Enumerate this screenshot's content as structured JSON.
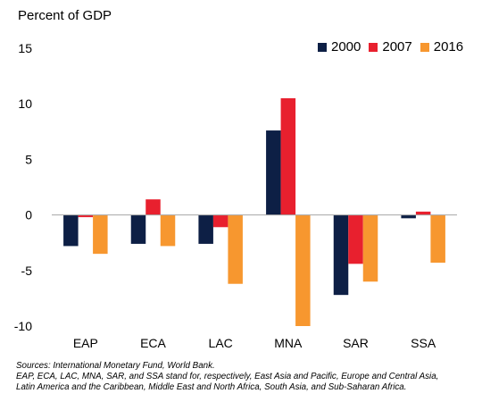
{
  "chart_data": {
    "type": "bar",
    "ylabel": "Percent of GDP",
    "categories": [
      "EAP",
      "ECA",
      "LAC",
      "MNA",
      "SAR",
      "SSA"
    ],
    "series": [
      {
        "name": "2000",
        "color": "#0d1f45",
        "values": [
          -2.8,
          -2.6,
          -2.6,
          7.6,
          -7.2,
          -0.3
        ]
      },
      {
        "name": "2007",
        "color": "#e8202e",
        "values": [
          -0.2,
          1.4,
          -1.1,
          10.5,
          -4.4,
          0.3
        ]
      },
      {
        "name": "2016",
        "color": "#f7972f",
        "values": [
          -3.5,
          -2.8,
          -6.2,
          -10.0,
          -6.0,
          -4.3
        ]
      }
    ],
    "ylim": [
      -10,
      15
    ],
    "yticks": [
      -10,
      -5,
      0,
      5,
      10,
      15
    ],
    "ytick_labels": [
      "-10",
      "-5",
      "0",
      "5",
      "10",
      "15"
    ],
    "legend_position": "top-right",
    "grid": false
  },
  "notes": {
    "sources": "Sources: International Monetary Fund, World Bank.",
    "line1": "EAP, ECA, LAC, MNA, SAR, and SSA stand for, respectively, East Asia and Pacific, Europe and Central Asia,",
    "line2": "Latin America and the Caribbean, Middle East and North Africa, South Asia, and Sub-Saharan Africa."
  }
}
